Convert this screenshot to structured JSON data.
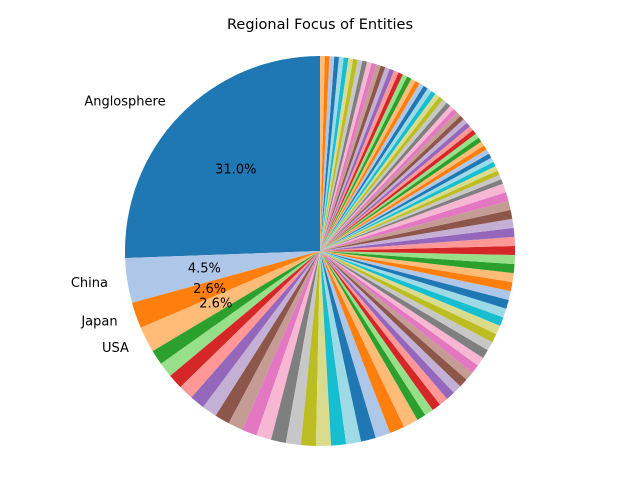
{
  "chart_data": {
    "type": "pie",
    "title": "Regional Focus of Entities",
    "start_angle_deg": 90,
    "direction": "counterclockwise",
    "palette": [
      "#1f77b4",
      "#aec7e8",
      "#ff7f0e",
      "#ffbb78",
      "#2ca02c",
      "#98df8a",
      "#d62728",
      "#ff9896",
      "#9467bd",
      "#c5b0d5",
      "#8c564b",
      "#c49c94",
      "#e377c2",
      "#f7b6d2",
      "#7f7f7f",
      "#c7c7c7",
      "#bcbd22",
      "#dbdb8d",
      "#17becf",
      "#9edae5"
    ],
    "labeled_slices": [
      {
        "label": "Anglosphere",
        "percent": 31.0,
        "percent_label": "31.0%"
      },
      {
        "label": "China",
        "percent": 4.5,
        "percent_label": "4.5%"
      },
      {
        "label": "Japan",
        "percent": 2.6,
        "percent_label": "2.6%"
      },
      {
        "label": "USA",
        "percent": 2.6,
        "percent_label": "2.6%"
      }
    ],
    "minor_slices_percent": [
      1.5,
      1.5,
      1.5,
      1.5,
      1.5,
      1.5,
      1.5,
      1.5,
      1.5,
      1.5,
      1.5,
      1.5,
      1.5,
      1.5,
      1.5,
      1.5,
      1.5,
      1.5,
      1.5,
      1.5,
      0.9,
      0.9,
      0.9,
      0.9,
      0.9,
      0.9,
      0.9,
      0.9,
      0.9,
      0.9,
      0.9,
      0.9,
      0.9,
      0.9,
      0.9,
      0.9,
      0.9,
      0.9,
      0.9,
      0.9,
      0.9,
      0.9,
      0.9,
      0.9,
      0.9,
      0.9,
      0.9,
      0.9,
      0.9,
      0.9,
      0.47,
      0.47,
      0.47,
      0.47,
      0.47,
      0.47,
      0.47,
      0.47,
      0.47,
      0.47,
      0.47,
      0.47,
      0.47,
      0.47,
      0.47,
      0.47,
      0.47,
      0.47,
      0.47,
      0.47,
      0.47,
      0.47,
      0.47,
      0.47,
      0.47,
      0.47,
      0.47,
      0.47,
      0.47,
      0.47,
      0.47,
      0.47,
      0.47,
      0.47,
      0.47,
      0.47,
      0.47,
      0.47,
      0.47,
      0.47,
      0.47,
      0.47,
      0.47,
      0.47,
      0.47,
      0.47,
      0.47,
      0.47,
      0.47,
      0.47
    ]
  }
}
